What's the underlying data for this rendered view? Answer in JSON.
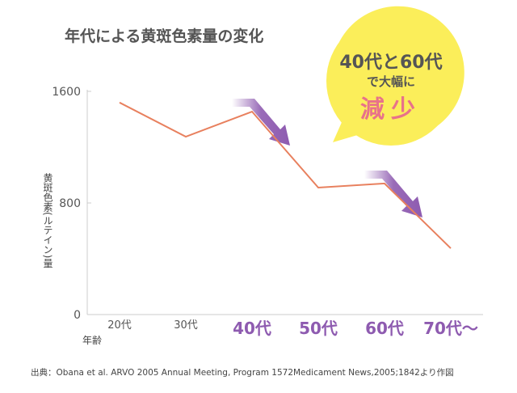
{
  "title": "年代による黄斑色素量の変化",
  "callout": {
    "line1": "40代と60代",
    "line2": "で大幅に",
    "line3": "減少",
    "bubble_color": "#fbee5a",
    "text_color": "#555555",
    "emphasis_color": "#e8728a"
  },
  "source": "出典：Obana et al. ARVO 2005 Annual Meeting, Program 1572Medicament News,2005;1842より作図",
  "chart_data": {
    "type": "line",
    "title": "年代による黄斑色素量の変化",
    "xlabel": "年齢",
    "ylabel": "黄斑色素(ルテイン)量",
    "categories": [
      "20代",
      "30代",
      "40代",
      "50代",
      "60代",
      "70代〜"
    ],
    "highlighted_categories": [
      "40代",
      "50代",
      "60代",
      "70代〜"
    ],
    "series": [
      {
        "name": "黄斑色素量",
        "values": [
          1520,
          1275,
          1455,
          910,
          940,
          475
        ],
        "color": "#e8805e"
      }
    ],
    "yticks": [
      0,
      800,
      1600
    ],
    "ylim": [
      0,
      1600
    ],
    "grid": false,
    "legend": "none",
    "annotations": [
      {
        "type": "arrow",
        "from": "40代",
        "to": "50代",
        "color": "#8e5bb0"
      },
      {
        "type": "arrow",
        "from": "60代",
        "to": "70代〜",
        "color": "#8e5bb0"
      }
    ],
    "colors": {
      "axis": "#cccccc",
      "tick_label": "#555555",
      "highlight_label": "#8e5bb0"
    }
  }
}
